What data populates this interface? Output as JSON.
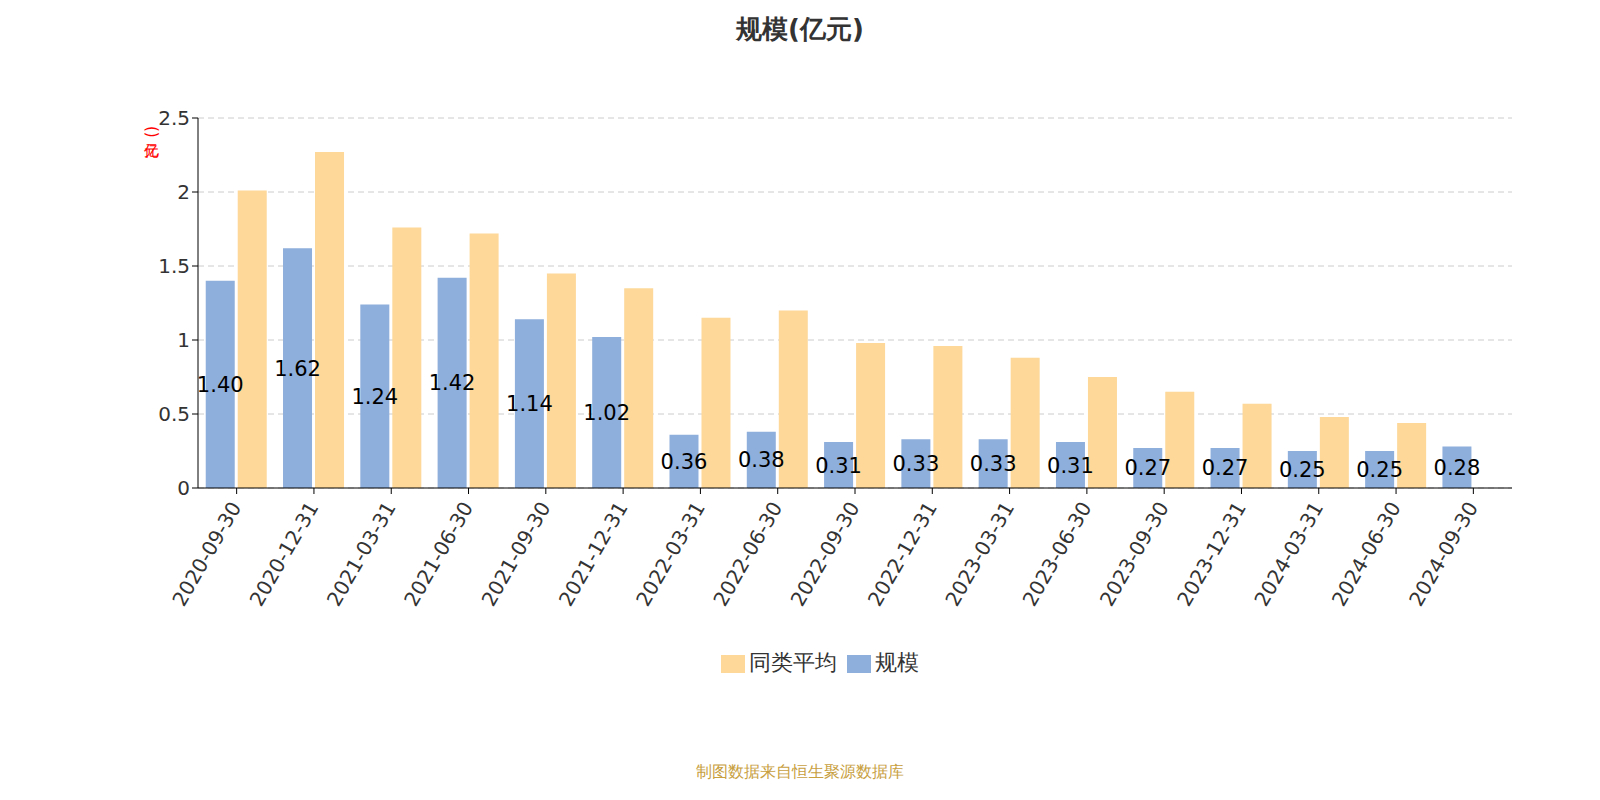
{
  "chart_data": {
    "type": "bar",
    "title": "规模(亿元)",
    "ylabel": "(亿元)",
    "annotations": [
      "制图数据来自恒生聚源数据库"
    ],
    "categories": [
      "2020-09-30",
      "2020-12-31",
      "2021-03-31",
      "2021-06-30",
      "2021-09-30",
      "2021-12-31",
      "2022-03-31",
      "2022-06-30",
      "2022-09-30",
      "2022-12-31",
      "2023-03-31",
      "2023-06-30",
      "2023-09-30",
      "2023-12-31",
      "2024-03-31",
      "2024-06-30",
      "2024-09-30"
    ],
    "series": [
      {
        "name": "规模",
        "color": "#8eaedb",
        "data_labels": true,
        "values": [
          1.4,
          1.62,
          1.24,
          1.42,
          1.14,
          1.02,
          0.36,
          0.38,
          0.31,
          0.33,
          0.33,
          0.31,
          0.27,
          0.27,
          0.25,
          0.25,
          0.28
        ],
        "value_labels": [
          "1.40",
          "1.62",
          "1.24",
          "1.42",
          "1.14",
          "1.02",
          "0.36",
          "0.38",
          "0.31",
          "0.33",
          "0.33",
          "0.31",
          "0.27",
          "0.27",
          "0.25",
          "0.25",
          "0.28"
        ]
      },
      {
        "name": "同类平均",
        "color": "#fdd899",
        "values": [
          2.01,
          2.27,
          1.76,
          1.72,
          1.45,
          1.35,
          1.15,
          1.2,
          0.98,
          0.96,
          0.88,
          0.75,
          0.65,
          0.57,
          0.48,
          0.44,
          null
        ]
      }
    ],
    "ylim": [
      0,
      2.5
    ],
    "yticks": [
      0,
      0.5,
      1,
      1.5,
      2,
      2.5
    ],
    "grid": true,
    "legend": "bottom"
  }
}
